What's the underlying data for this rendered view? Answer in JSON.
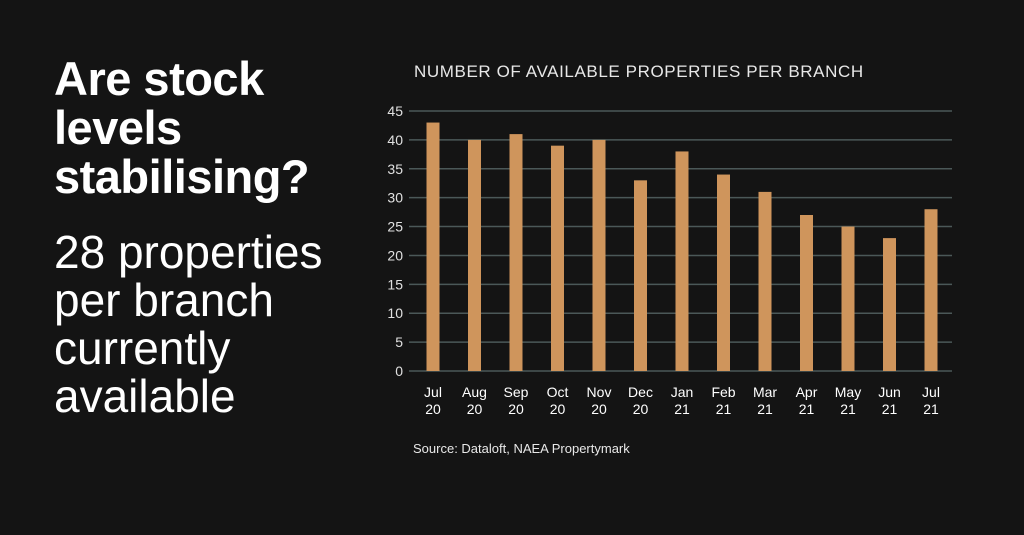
{
  "headline": [
    "Are stock",
    "levels",
    "stabilising?"
  ],
  "subheadline": [
    "28 properties",
    "per branch",
    "currently",
    "available"
  ],
  "source": "Source: Dataloft, NAEA Propertymark",
  "colors": {
    "background": "#141414",
    "bar": "#CF955C",
    "grid": "#4B5858"
  },
  "chart_data": {
    "type": "bar",
    "title": "NUMBER OF AVAILABLE PROPERTIES PER BRANCH",
    "categories": [
      [
        "Jul",
        "20"
      ],
      [
        "Aug",
        "20"
      ],
      [
        "Sep",
        "20"
      ],
      [
        "Oct",
        "20"
      ],
      [
        "Nov",
        "20"
      ],
      [
        "Dec",
        "20"
      ],
      [
        "Jan",
        "21"
      ],
      [
        "Feb",
        "21"
      ],
      [
        "Mar",
        "21"
      ],
      [
        "Apr",
        "21"
      ],
      [
        "May",
        "21"
      ],
      [
        "Jun",
        "21"
      ],
      [
        "Jul",
        "21"
      ]
    ],
    "values": [
      43,
      40,
      41,
      39,
      40,
      33,
      38,
      34,
      31,
      27,
      25,
      23,
      28
    ],
    "ylim": [
      0,
      45
    ],
    "yticks": [
      0,
      5,
      10,
      15,
      20,
      25,
      30,
      35,
      40,
      45
    ],
    "grid": true,
    "xlabel": "",
    "ylabel": ""
  }
}
